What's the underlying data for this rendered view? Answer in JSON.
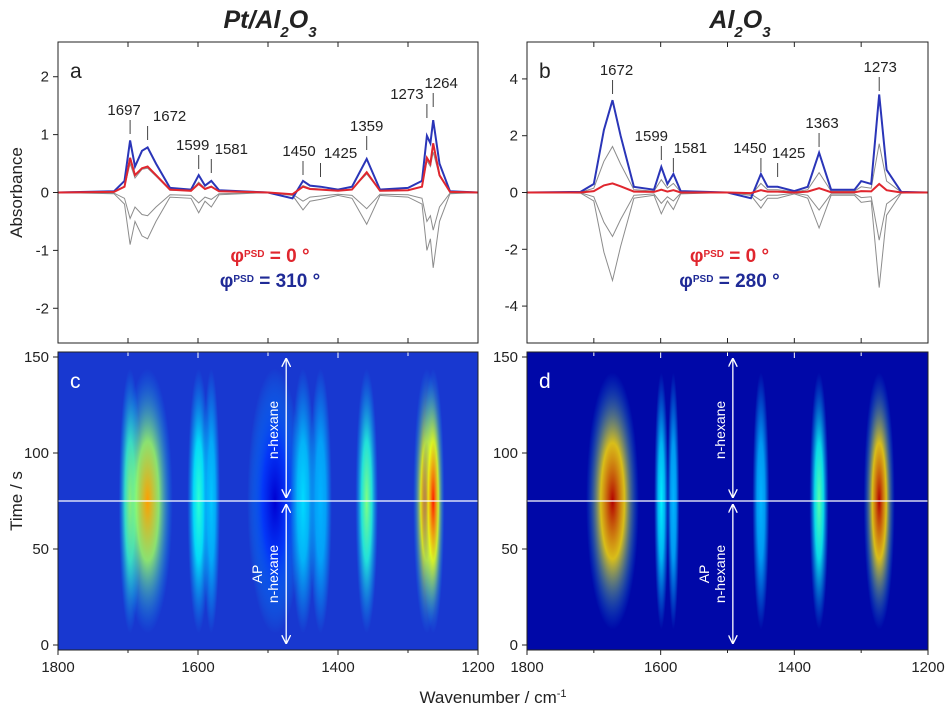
{
  "chart_data": [
    {
      "type": "line",
      "title_parts": [
        "Pt/Al",
        "2",
        "O",
        "3"
      ],
      "panel_label": "a",
      "ylabel": "Absorbance",
      "xlim": [
        1800,
        1200
      ],
      "xticks": [
        1800,
        1700,
        1600,
        1500,
        1400,
        1300,
        1200
      ],
      "ylim": [
        -2.6,
        2.6
      ],
      "yticks": [
        -2,
        -1,
        0,
        1,
        2
      ],
      "x": [
        1800,
        1720,
        1705,
        1697,
        1690,
        1680,
        1672,
        1660,
        1640,
        1610,
        1599,
        1590,
        1581,
        1570,
        1500,
        1465,
        1450,
        1440,
        1425,
        1400,
        1380,
        1359,
        1340,
        1300,
        1280,
        1273,
        1268,
        1264,
        1255,
        1240,
        1200
      ],
      "series": [
        {
          "color": "#8c8c8c",
          "values": [
            0,
            -0.02,
            -0.2,
            -0.9,
            -0.5,
            -0.75,
            -0.8,
            -0.5,
            -0.08,
            -0.1,
            -0.35,
            -0.15,
            -0.25,
            -0.04,
            0,
            -0.05,
            -0.3,
            -0.15,
            -0.12,
            -0.05,
            -0.1,
            -0.55,
            -0.05,
            -0.08,
            -0.2,
            -1.0,
            -0.8,
            -1.3,
            -0.5,
            -0.02,
            0
          ]
        },
        {
          "color": "#8c8c8c",
          "values": [
            0,
            -0.01,
            -0.1,
            -0.45,
            -0.25,
            -0.38,
            -0.4,
            -0.25,
            -0.04,
            -0.05,
            -0.18,
            -0.08,
            -0.12,
            -0.02,
            0,
            -0.03,
            -0.15,
            -0.08,
            -0.06,
            -0.03,
            -0.05,
            -0.28,
            -0.03,
            -0.04,
            -0.1,
            -0.5,
            -0.4,
            -0.65,
            -0.25,
            -0.01,
            0
          ]
        },
        {
          "color": "#8c8c8c",
          "values": [
            0,
            0.01,
            0.1,
            0.5,
            0.25,
            0.4,
            0.42,
            0.28,
            0.04,
            0.03,
            0.18,
            0.07,
            0.11,
            0.02,
            0,
            -0.05,
            0.12,
            0.07,
            0.06,
            0.03,
            0.06,
            0.32,
            0.03,
            0.04,
            0.1,
            0.55,
            0.45,
            0.7,
            0.28,
            0.01,
            0
          ]
        },
        {
          "color": "#2a35b8",
          "values": [
            0,
            0.02,
            0.2,
            0.9,
            0.45,
            0.72,
            0.78,
            0.5,
            0.08,
            0.05,
            0.3,
            0.12,
            0.2,
            0.04,
            0,
            -0.1,
            0.2,
            0.12,
            0.1,
            0.05,
            0.1,
            0.58,
            0.05,
            0.08,
            0.2,
            0.98,
            0.85,
            1.25,
            0.5,
            0.02,
            0
          ]
        },
        {
          "color": "#e0262e",
          "values": [
            0,
            0.01,
            0.1,
            0.6,
            0.3,
            0.42,
            0.45,
            0.3,
            0.05,
            0.03,
            0.15,
            0.06,
            0.1,
            0.02,
            0,
            -0.03,
            0.1,
            0.06,
            0.05,
            0.03,
            0.05,
            0.35,
            0.03,
            0.04,
            0.1,
            0.6,
            0.5,
            0.85,
            0.3,
            0.01,
            0
          ]
        }
      ],
      "peaks": [
        1697,
        1672,
        1599,
        1581,
        1450,
        1425,
        1359,
        1273,
        1264
      ],
      "annotations": [
        {
          "symbol": "φ",
          "sup": "PSD",
          "text": " = 0 °",
          "color": "#e0262e"
        },
        {
          "symbol": "φ",
          "sup": "PSD",
          "text": " = 310 °",
          "color": "#1f2a96"
        }
      ]
    },
    {
      "type": "line",
      "title_parts": [
        "Al",
        "2",
        "O",
        "3"
      ],
      "panel_label": "b",
      "xlim": [
        1800,
        1200
      ],
      "xticks": [
        1800,
        1700,
        1600,
        1500,
        1400,
        1300,
        1200
      ],
      "ylim": [
        -5.3,
        5.3
      ],
      "yticks": [
        -4,
        -2,
        0,
        2,
        4
      ],
      "x": [
        1800,
        1720,
        1700,
        1685,
        1672,
        1660,
        1640,
        1610,
        1599,
        1590,
        1581,
        1570,
        1500,
        1465,
        1450,
        1440,
        1425,
        1400,
        1380,
        1363,
        1345,
        1310,
        1300,
        1285,
        1273,
        1262,
        1240,
        1200
      ],
      "series": [
        {
          "color": "#8c8c8c",
          "values": [
            0,
            -0.02,
            -0.3,
            -2.1,
            -3.1,
            -1.9,
            -0.2,
            -0.1,
            -0.75,
            -0.3,
            -0.6,
            -0.05,
            0,
            -0.1,
            -0.55,
            -0.2,
            -0.2,
            -0.05,
            -0.2,
            -1.25,
            -0.1,
            -0.1,
            -0.35,
            -0.3,
            -3.35,
            -0.8,
            -0.02,
            0
          ]
        },
        {
          "color": "#8c8c8c",
          "values": [
            0,
            -0.01,
            -0.15,
            -1.05,
            -1.55,
            -0.95,
            -0.1,
            -0.05,
            -0.38,
            -0.15,
            -0.3,
            -0.02,
            0,
            -0.05,
            -0.28,
            -0.1,
            -0.1,
            -0.02,
            -0.1,
            -0.62,
            -0.05,
            -0.05,
            -0.18,
            -0.15,
            -1.68,
            -0.4,
            -0.01,
            0
          ]
        },
        {
          "color": "#8c8c8c",
          "values": [
            0,
            0.01,
            0.15,
            1.1,
            1.62,
            1.0,
            0.1,
            0.05,
            0.45,
            0.15,
            0.32,
            0.02,
            0,
            -0.1,
            0.32,
            0.1,
            0.1,
            0.02,
            0.1,
            0.7,
            0.05,
            0.05,
            0.2,
            0.15,
            1.72,
            0.4,
            0.01,
            0
          ]
        },
        {
          "color": "#2a35b8",
          "values": [
            0,
            0.02,
            0.3,
            2.2,
            3.25,
            2.0,
            0.2,
            0.1,
            0.9,
            0.3,
            0.65,
            0.05,
            0,
            -0.2,
            0.65,
            0.2,
            0.2,
            0.05,
            0.2,
            1.4,
            0.1,
            0.1,
            0.4,
            0.3,
            3.45,
            0.8,
            0.02,
            0
          ]
        },
        {
          "color": "#e0262e",
          "values": [
            0,
            0,
            0.05,
            0.25,
            0.32,
            0.22,
            0.03,
            0.02,
            0.1,
            0.03,
            0.08,
            0,
            0,
            -0.02,
            0.08,
            0.03,
            0.03,
            0,
            0.03,
            0.15,
            0.01,
            0.01,
            0.05,
            0.04,
            0.3,
            0.08,
            0,
            0
          ]
        }
      ],
      "peaks": [
        1672,
        1599,
        1581,
        1450,
        1425,
        1363,
        1273
      ],
      "annotations": [
        {
          "symbol": "φ",
          "sup": "PSD",
          "text": " = 0 °",
          "color": "#e0262e"
        },
        {
          "symbol": "φ",
          "sup": "PSD",
          "text": " = 280 °",
          "color": "#1f2a96"
        }
      ]
    },
    {
      "type": "heatmap",
      "panel_label": "c",
      "ylabel": "Time / s",
      "xlabel": "Wavenumber / cm",
      "xlabel_sup": "-1",
      "xlim": [
        1800,
        1200
      ],
      "xticks": [
        1800,
        1600,
        1400,
        1200
      ],
      "xminor": [
        1700,
        1500,
        1300
      ],
      "ylim": [
        -2.6,
        152.6
      ],
      "yticks": [
        0,
        50,
        100,
        150
      ],
      "background": "#1838d0",
      "hline": 75,
      "band_time": [
        6,
        144
      ],
      "bands": [
        {
          "x": 1490,
          "intensity": 0.08,
          "width": 22
        },
        {
          "x": 1697,
          "intensity": 0.55,
          "width": 9
        },
        {
          "x": 1672,
          "intensity": 0.72,
          "width": 20
        },
        {
          "x": 1599,
          "intensity": 0.42,
          "width": 9
        },
        {
          "x": 1581,
          "intensity": 0.32,
          "width": 7
        },
        {
          "x": 1450,
          "intensity": 0.34,
          "width": 10
        },
        {
          "x": 1425,
          "intensity": 0.3,
          "width": 9
        },
        {
          "x": 1359,
          "intensity": 0.5,
          "width": 9
        },
        {
          "x": 1273,
          "intensity": 0.88,
          "width": 11
        },
        {
          "x": 1264,
          "intensity": 0.85,
          "width": 9
        }
      ],
      "arrow_labels": [
        "n-hexane",
        "AP",
        "n-hexane"
      ]
    },
    {
      "type": "heatmap",
      "panel_label": "d",
      "xlim": [
        1800,
        1200
      ],
      "xticks": [
        1800,
        1600,
        1400,
        1200
      ],
      "xminor": [
        1700,
        1500,
        1300
      ],
      "ylim": [
        -2.6,
        152.6
      ],
      "yticks": [
        0,
        50,
        100,
        150
      ],
      "background": "#0008a8",
      "hline": 75,
      "band_time": [
        8,
        142
      ],
      "bands": [
        {
          "x": 1672,
          "intensity": 0.95,
          "width": 22
        },
        {
          "x": 1599,
          "intensity": 0.36,
          "width": 6
        },
        {
          "x": 1581,
          "intensity": 0.3,
          "width": 5
        },
        {
          "x": 1450,
          "intensity": 0.3,
          "width": 7
        },
        {
          "x": 1363,
          "intensity": 0.46,
          "width": 8
        },
        {
          "x": 1273,
          "intensity": 0.95,
          "width": 13
        }
      ],
      "arrow_labels": [
        "n-hexane",
        "AP",
        "n-hexane"
      ]
    }
  ]
}
